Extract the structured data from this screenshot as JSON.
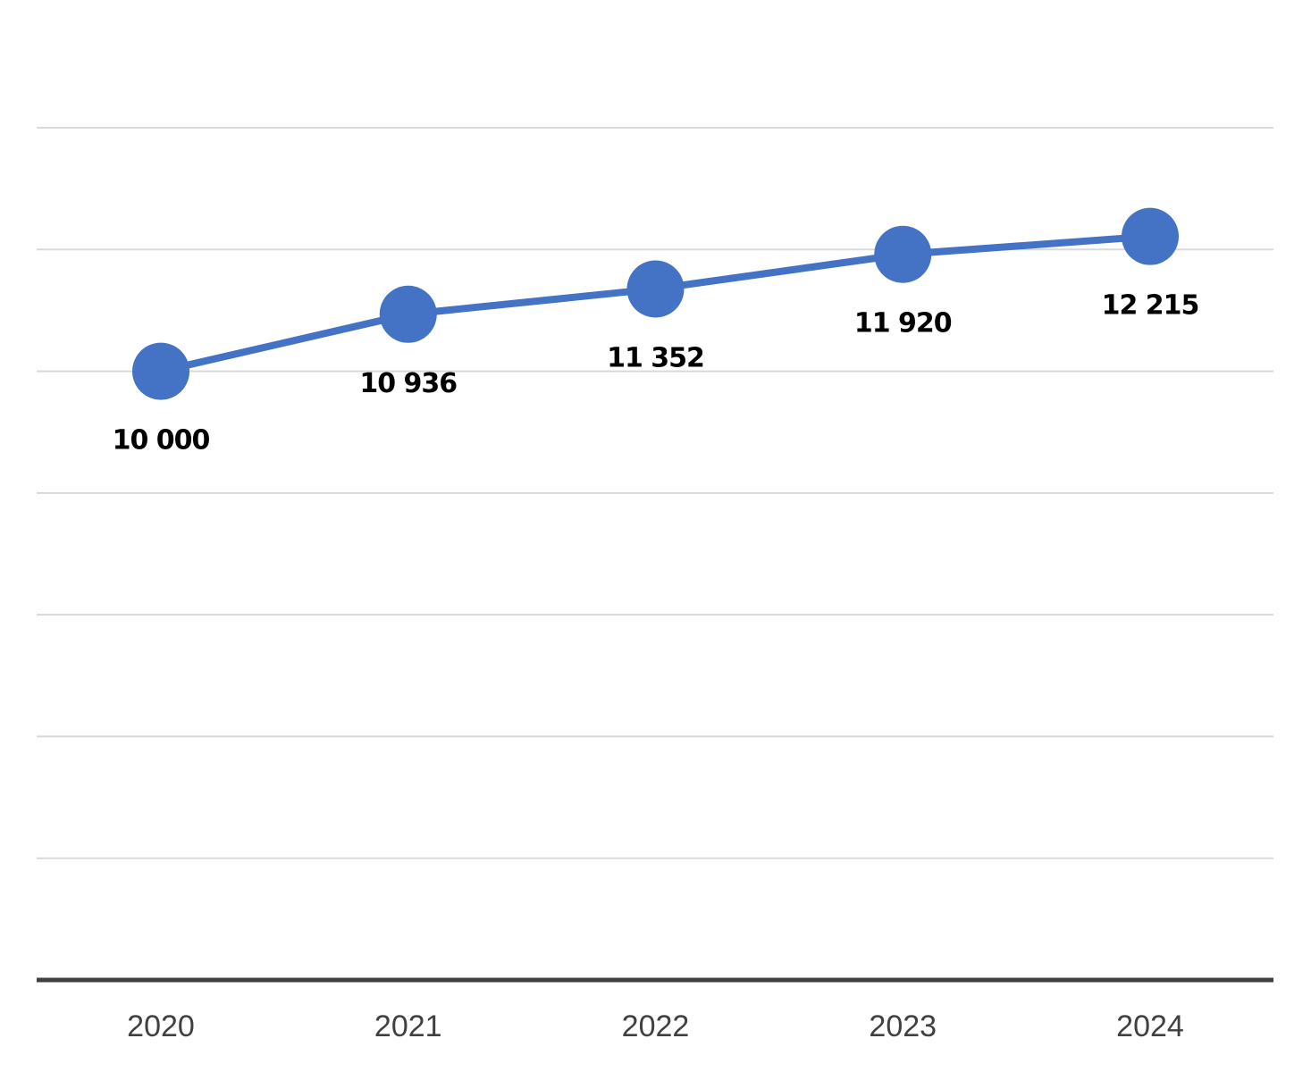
{
  "chart_data": {
    "type": "line",
    "categories": [
      "2020",
      "2021",
      "2022",
      "2023",
      "2024"
    ],
    "series": [
      {
        "values": [
          10000,
          10936,
          11352,
          11920,
          12215
        ],
        "data_labels": [
          "10 000",
          "10 936",
          "11 352",
          "11 920",
          "12 215"
        ],
        "color": "#4472c4"
      }
    ],
    "ylim": [
      0,
      14000
    ],
    "y_gridline_step": 2000,
    "grid": true,
    "title": "",
    "xlabel": "",
    "ylabel": "",
    "legend": "none",
    "data_label_position": "below"
  }
}
